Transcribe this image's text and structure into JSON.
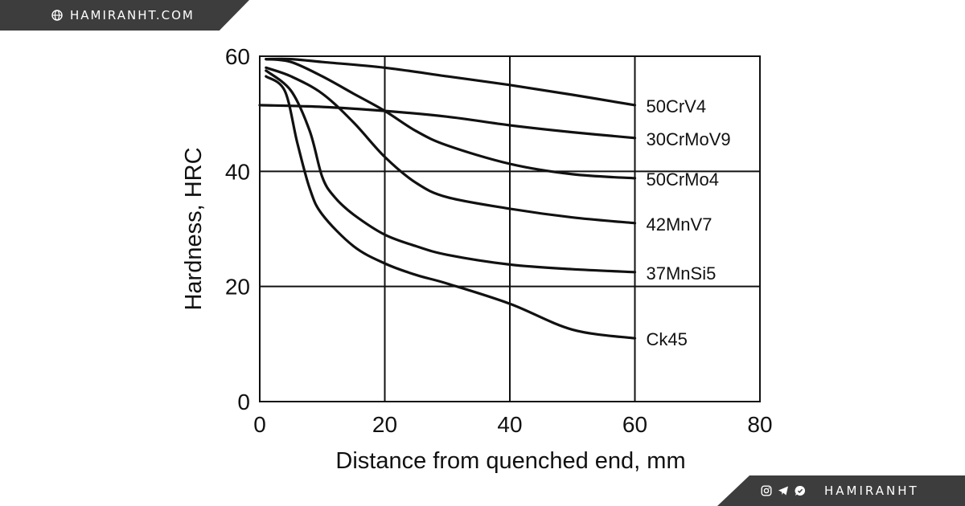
{
  "header": {
    "site": "HAMIRANHT.COM",
    "icon": "globe-icon"
  },
  "footer": {
    "brand": "HAMIRANHT",
    "icons": [
      "instagram-icon",
      "telegram-icon",
      "whatsapp-icon"
    ]
  },
  "colors": {
    "banner": "#3d3d3d",
    "ink": "#111111"
  },
  "chart_data": {
    "type": "line",
    "xlabel": "Distance from quenched end, mm",
    "ylabel": "Hardness, HRC",
    "xlim": [
      0,
      80
    ],
    "ylim": [
      0,
      60
    ],
    "xticks": [
      0,
      20,
      40,
      60,
      80
    ],
    "yticks": [
      0,
      20,
      40,
      60
    ],
    "grid": true,
    "legend": "direct labels at right end of curves",
    "series": [
      {
        "name": "50CrV4",
        "x": [
          1,
          5,
          10,
          20,
          30,
          40,
          50,
          60
        ],
        "y": [
          59.5,
          59.5,
          59,
          58,
          56.5,
          55,
          53.3,
          51.5
        ]
      },
      {
        "name": "30CrMoV9",
        "x": [
          0,
          10,
          20,
          30,
          40,
          50,
          60
        ],
        "y": [
          51.5,
          51.2,
          50.5,
          49.5,
          48,
          46.8,
          45.8
        ]
      },
      {
        "name": "50CrMo4",
        "x": [
          1,
          5,
          10,
          15,
          20,
          25,
          30,
          40,
          50,
          60
        ],
        "y": [
          59.5,
          59,
          56.5,
          53.5,
          50.5,
          47,
          44.5,
          41.3,
          39.5,
          38.8
        ]
      },
      {
        "name": "42MnV7",
        "x": [
          1,
          5,
          10,
          15,
          20,
          25,
          30,
          40,
          50,
          60
        ],
        "y": [
          58,
          56.5,
          53.5,
          48.5,
          42.5,
          38,
          35.5,
          33.5,
          32,
          31
        ]
      },
      {
        "name": "37MnSi5",
        "x": [
          1,
          5,
          8,
          10,
          12,
          15,
          20,
          25,
          30,
          40,
          50,
          60
        ],
        "y": [
          57.5,
          54,
          47,
          39,
          35.5,
          32.5,
          29,
          27,
          25.5,
          23.8,
          23,
          22.5
        ]
      },
      {
        "name": "Ck45",
        "x": [
          1,
          4,
          6,
          8,
          10,
          15,
          20,
          25,
          30,
          40,
          50,
          60
        ],
        "y": [
          56.5,
          54,
          45,
          37,
          32.5,
          27,
          24,
          22,
          20.5,
          17,
          12.5,
          11
        ]
      }
    ]
  }
}
